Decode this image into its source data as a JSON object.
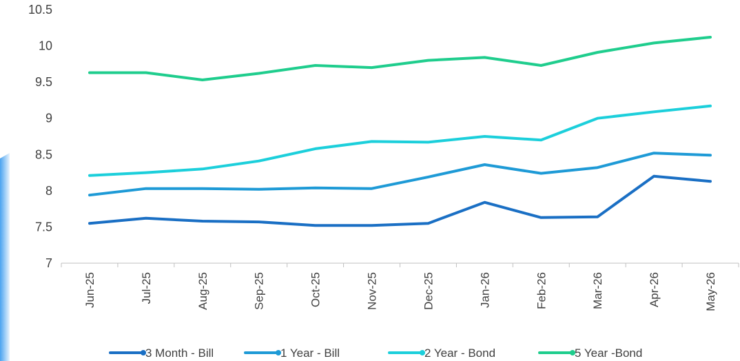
{
  "chart_data": {
    "type": "line",
    "title": "",
    "xlabel": "",
    "ylabel": "",
    "ylim": [
      7,
      10.5
    ],
    "yticks": [
      "7",
      "7.5",
      "8",
      "8.5",
      "9",
      "9.5",
      "10",
      "10.5"
    ],
    "grid": false,
    "legend_position": "bottom",
    "categories": [
      "Jun-25",
      "Jul-25",
      "Aug-25",
      "Sep-25",
      "Oct-25",
      "Nov-25",
      "Dec-25",
      "Jan-26",
      "Feb-26",
      "Mar-26",
      "Apr-26",
      "May-26"
    ],
    "series": [
      {
        "name": "3 Month - Bill",
        "color": "#1a6fc4",
        "values": [
          7.55,
          7.62,
          7.58,
          7.57,
          7.52,
          7.52,
          7.55,
          7.84,
          7.63,
          7.64,
          8.2,
          8.13
        ]
      },
      {
        "name": "1 Year - Bill",
        "color": "#1e9ad6",
        "values": [
          7.94,
          8.03,
          8.03,
          8.02,
          8.04,
          8.03,
          8.19,
          8.36,
          8.24,
          8.32,
          8.52,
          8.49
        ]
      },
      {
        "name": "2 Year - Bond",
        "color": "#1ccfdb",
        "values": [
          8.21,
          8.25,
          8.3,
          8.41,
          8.58,
          8.68,
          8.67,
          8.75,
          8.7,
          9.0,
          9.09,
          9.17
        ]
      },
      {
        "name": "5 Year -Bond",
        "color": "#1fcd8d",
        "values": [
          9.63,
          9.63,
          9.53,
          9.62,
          9.73,
          9.7,
          9.8,
          9.84,
          9.73,
          9.91,
          10.04,
          10.12
        ]
      }
    ]
  }
}
